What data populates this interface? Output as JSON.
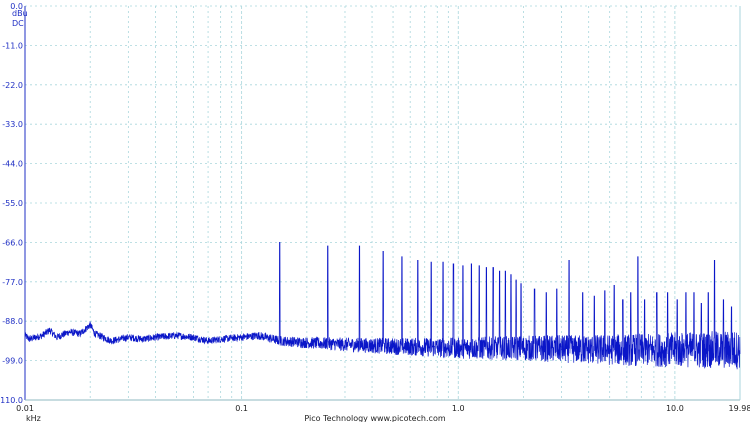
{
  "chart_data": {
    "type": "line",
    "title": "",
    "xlabel": "kHz",
    "ylabel": "dBu",
    "coupling": "DC",
    "x_scale": "log",
    "xlim": [
      0.01,
      19.98
    ],
    "ylim": [
      -110.0,
      0.0
    ],
    "grid": true,
    "y_ticks": [
      "0.0",
      "-11.0",
      "-22.0",
      "-33.0",
      "-44.0",
      "-55.0",
      "-66.0",
      "-77.0",
      "-88.0",
      "-99.0",
      "-110.0"
    ],
    "x_ticks": [
      "0.01",
      "0.1",
      "1.0",
      "10.0",
      "19.98"
    ],
    "footer": "Pico Technology   www.picotech.com",
    "line_color": "#0a16c8",
    "grid_color": "#a9d6dc",
    "noise_floor": [
      [
        0.01,
        -92.0
      ],
      [
        0.0105,
        -93.0
      ],
      [
        0.012,
        -92.0
      ],
      [
        0.013,
        -90.5
      ],
      [
        0.014,
        -92.5
      ],
      [
        0.016,
        -91.0
      ],
      [
        0.018,
        -91.5
      ],
      [
        0.02,
        -89.0
      ],
      [
        0.021,
        -91.5
      ],
      [
        0.023,
        -92.5
      ],
      [
        0.025,
        -93.5
      ],
      [
        0.03,
        -92.5
      ],
      [
        0.035,
        -93.0
      ],
      [
        0.04,
        -92.5
      ],
      [
        0.05,
        -92.0
      ],
      [
        0.06,
        -92.5
      ],
      [
        0.07,
        -93.5
      ],
      [
        0.08,
        -93.0
      ],
      [
        0.1,
        -92.5
      ],
      [
        0.12,
        -92.0
      ],
      [
        0.15,
        -93.5
      ],
      [
        0.2,
        -94.0
      ],
      [
        0.3,
        -94.5
      ],
      [
        0.5,
        -95.0
      ],
      [
        1.0,
        -95.5
      ],
      [
        2.0,
        -95.5
      ],
      [
        5.0,
        -96.0
      ],
      [
        10.0,
        -96.0
      ],
      [
        19.98,
        -96.0
      ]
    ],
    "peaks": [
      [
        0.15,
        -66.0
      ],
      [
        0.25,
        -67.0
      ],
      [
        0.35,
        -67.0
      ],
      [
        0.45,
        -68.5
      ],
      [
        0.55,
        -70.0
      ],
      [
        0.65,
        -71.0
      ],
      [
        0.75,
        -71.5
      ],
      [
        0.85,
        -71.5
      ],
      [
        0.95,
        -72.0
      ],
      [
        1.05,
        -72.5
      ],
      [
        1.15,
        -72.0
      ],
      [
        1.25,
        -72.5
      ],
      [
        1.35,
        -73.0
      ],
      [
        1.45,
        -73.0
      ],
      [
        1.55,
        -74.0
      ],
      [
        1.65,
        -74.0
      ],
      [
        1.75,
        -75.0
      ],
      [
        1.85,
        -76.5
      ],
      [
        1.95,
        -77.5
      ],
      [
        2.25,
        -79.0
      ],
      [
        2.55,
        -80.0
      ],
      [
        2.85,
        -79.0
      ],
      [
        3.25,
        -71.0
      ],
      [
        3.75,
        -80.0
      ],
      [
        4.25,
        -81.0
      ],
      [
        4.75,
        -79.5
      ],
      [
        5.25,
        -78.0
      ],
      [
        5.75,
        -82.0
      ],
      [
        6.25,
        -80.0
      ],
      [
        6.75,
        -70.0
      ],
      [
        7.25,
        -82.0
      ],
      [
        8.25,
        -80.0
      ],
      [
        9.25,
        -80.0
      ],
      [
        10.25,
        -82.0
      ],
      [
        11.25,
        -80.0
      ],
      [
        12.25,
        -80.0
      ],
      [
        13.25,
        -83.0
      ],
      [
        14.25,
        -80.0
      ],
      [
        15.25,
        -71.0
      ],
      [
        16.75,
        -82.0
      ],
      [
        18.25,
        -84.0
      ]
    ]
  }
}
